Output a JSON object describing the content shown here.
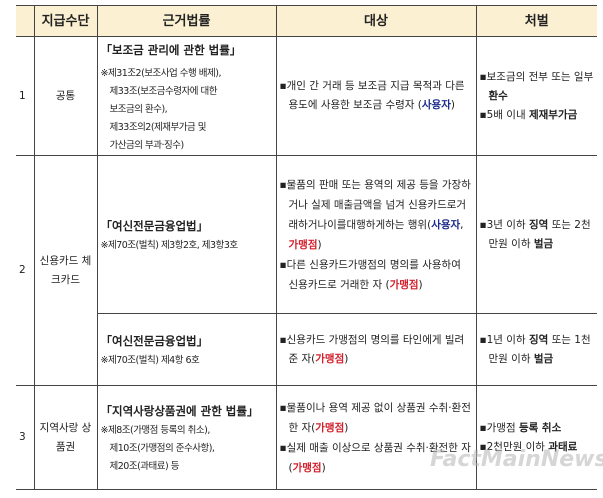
{
  "header": {
    "num": "",
    "method": "지급수단",
    "law": "근거법률",
    "target": "대상",
    "penalty": "처벌"
  },
  "rows": [
    {
      "num": "1",
      "method": "공통",
      "law": "「보조금 관리에 관한 법률」",
      "notes": [
        "※제31조2(보조사업 수행 배제),",
        "제33조(보조금수령자에 대한",
        "보조금의 환수),",
        "제33조의2(제재부가금 및",
        "가산금의 부과·징수)"
      ],
      "target": {
        "text": "개인 간 거래 등 보조금 지급 목적과 다른 용도에 사용한 보조금 수령자 (",
        "who": "사용자",
        "end": ")"
      },
      "penalty": [
        {
          "text": "보조금의 전부 또는 일부 ",
          "bold": "환수"
        },
        {
          "text": "5배 이내 ",
          "bold": "제재부가금"
        }
      ]
    },
    {
      "num": "2",
      "method": "신용카드 체크카드",
      "law": "「여신전문금융업법」",
      "notes": [
        "※제70조(벌칙) 제3항2호, 제3항3호"
      ],
      "targets": [
        {
          "text": "물품의 판매 또는 용역의 제공 등을 가장하거나 실제 매출금액을 넘겨 신용카드로거래하거나이를대행하게하는 행위(",
          "user": "사용자",
          "sep": ", ",
          "merchant": "가맹점",
          "end": ")"
        },
        {
          "text": "다른 신용카드가맹점의 명의를 사용하여 신용카드로 거래한 자 (",
          "merchant": "가맹점",
          "end": ")"
        }
      ],
      "penalty": {
        "pre": "3년 이하 ",
        "b1": "징역",
        "mid": " 또는 2천만원 이하 ",
        "b2": "벌금"
      }
    },
    {
      "law": "「여신전문금융업법」",
      "notes": [
        "※제70조(벌칙) 제4항 6호"
      ],
      "target": {
        "text": "신용카드 가맹점의 명의를 타인에게 빌려준 자(",
        "merchant": "가맹점",
        "end": ")"
      },
      "penalty": {
        "pre": "1년 이하 ",
        "b1": "징역",
        "mid": " 또는 1천만원 이하 ",
        "b2": "벌금"
      }
    },
    {
      "num": "3",
      "method": "지역사랑 상품권",
      "law": "「지역사랑상품권에 관한 법률」",
      "notes": [
        "※제8조(가맹점 등록의 취소),",
        "제10조(가맹점의 준수사항),",
        "제20조(과태료) 등"
      ],
      "targets": [
        {
          "text": "물품이나 용역 제공 없이 상품권 수취·환전한 자(",
          "merchant": "가맹점",
          "end": ")"
        },
        {
          "text": "실제 매출 이상으로 상품권 수취·환전한 자(",
          "merchant": "가맹점",
          "end": ")"
        }
      ],
      "penalty": [
        {
          "text": "가맹점 ",
          "bold": "등록 취소"
        },
        {
          "text": "2천만원 이하 ",
          "bold": "과태료"
        }
      ]
    }
  ],
  "bullet": "▪",
  "watermark": "FactMainNews",
  "colors": {
    "header_bg": "#fbf0d2",
    "user": "#1e2c8c",
    "merchant": "#d21f2b"
  }
}
